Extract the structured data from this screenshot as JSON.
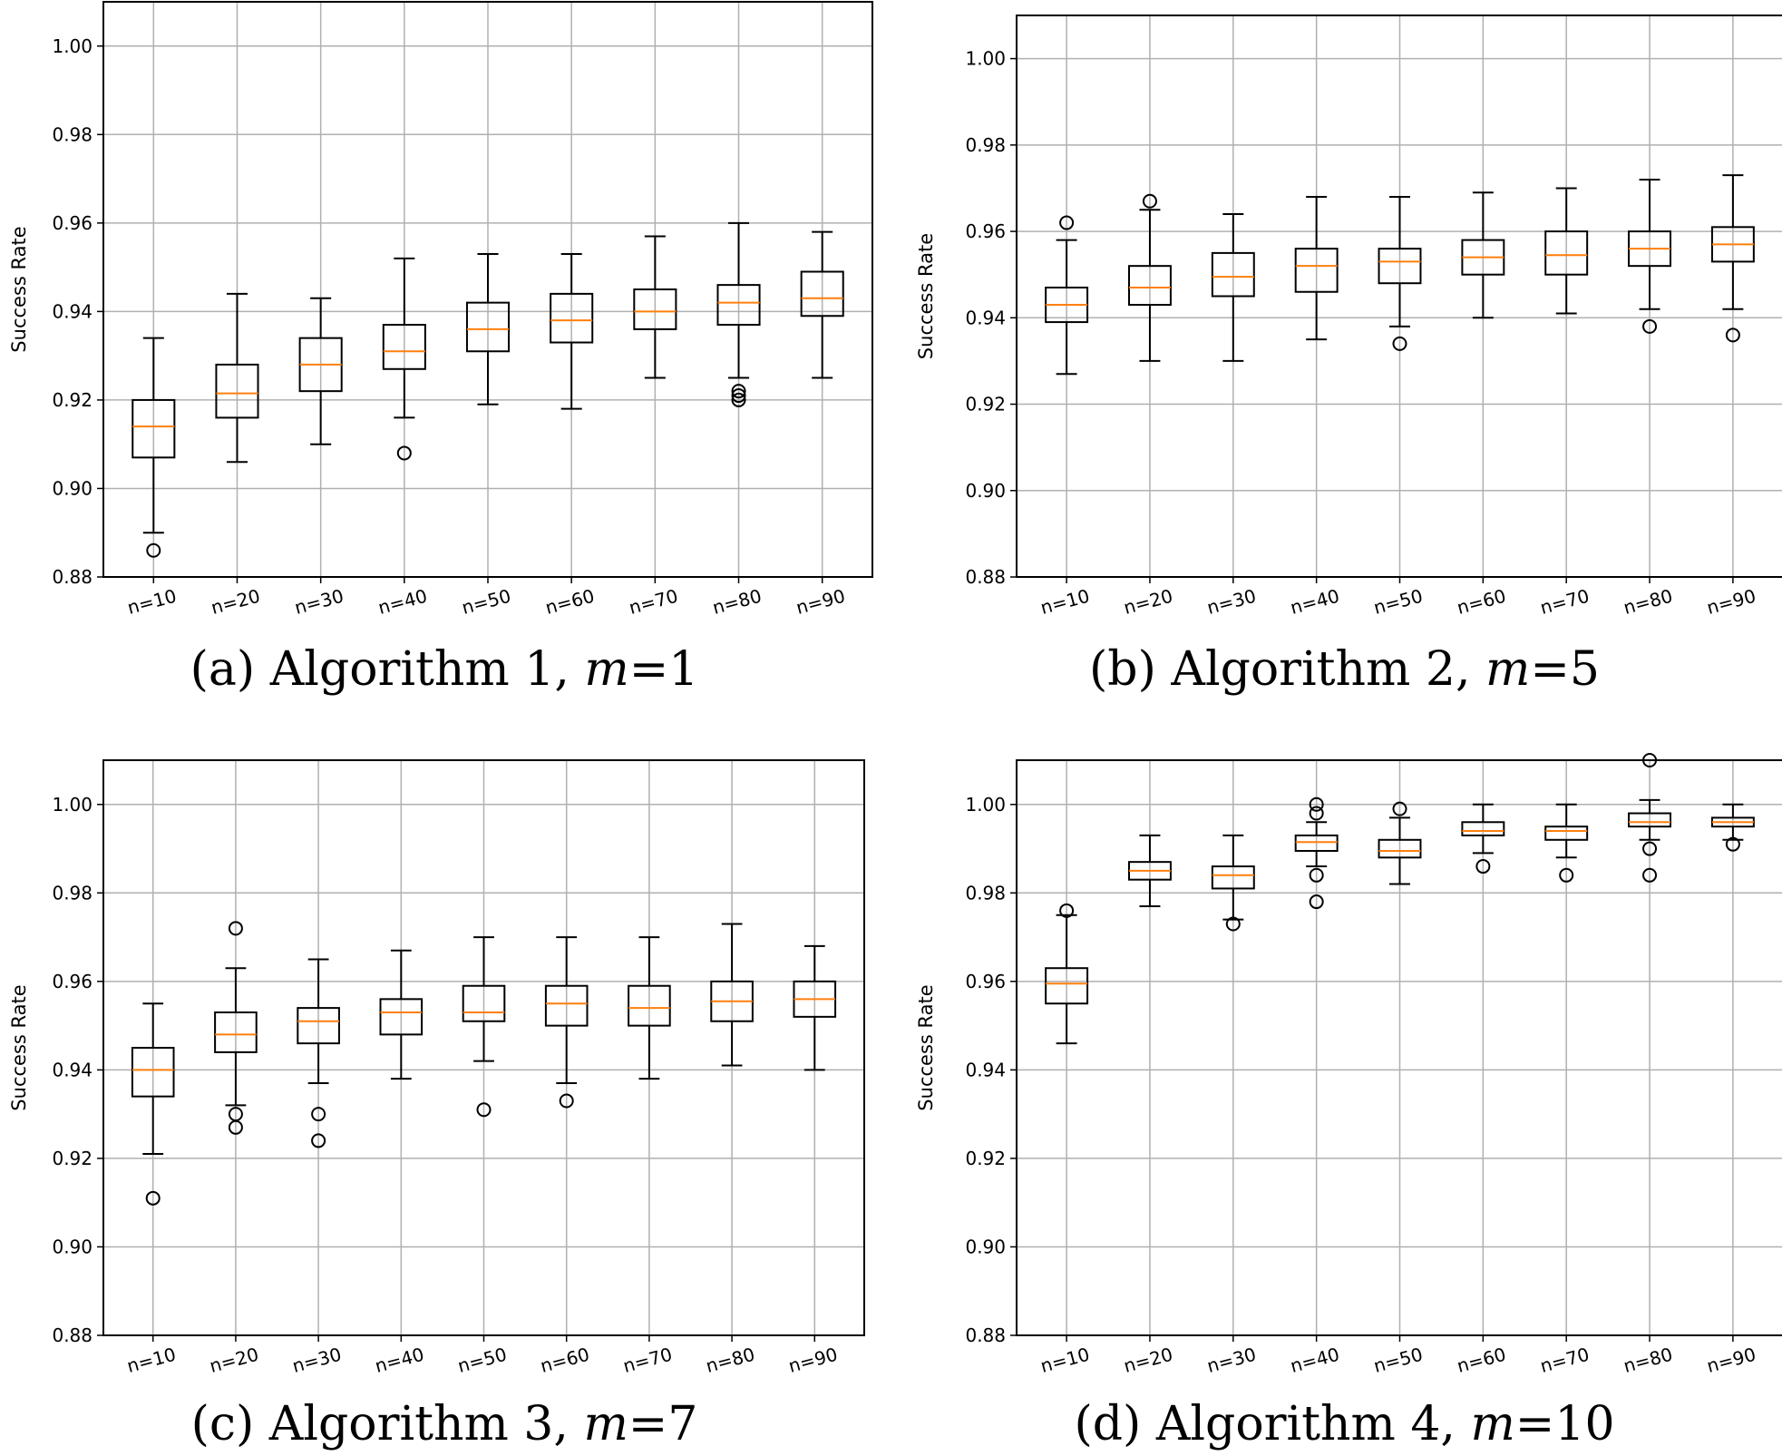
{
  "figure": {
    "panels": [
      {
        "caption": {
          "prefix": "(a) Algorithm 1, ",
          "var": "m",
          "suffix": "=1"
        },
        "chart_data": {
          "type": "box",
          "title": "",
          "xlabel": "",
          "ylabel": "Success Rate",
          "ylim": [
            0.88,
            1.01
          ],
          "yticks": [
            "0.88",
            "0.90",
            "0.92",
            "0.94",
            "0.96",
            "0.98",
            "1.00"
          ],
          "grid": true,
          "categories": [
            "n=10",
            "n=20",
            "n=30",
            "n=40",
            "n=50",
            "n=60",
            "n=70",
            "n=80",
            "n=90"
          ],
          "boxes": [
            {
              "whisker_low": 0.89,
              "q1": 0.907,
              "median": 0.914,
              "q3": 0.92,
              "whisker_high": 0.934,
              "outliers": [
                0.886
              ]
            },
            {
              "whisker_low": 0.906,
              "q1": 0.916,
              "median": 0.9215,
              "q3": 0.928,
              "whisker_high": 0.944,
              "outliers": []
            },
            {
              "whisker_low": 0.91,
              "q1": 0.922,
              "median": 0.928,
              "q3": 0.934,
              "whisker_high": 0.943,
              "outliers": []
            },
            {
              "whisker_low": 0.916,
              "q1": 0.927,
              "median": 0.931,
              "q3": 0.937,
              "whisker_high": 0.952,
              "outliers": [
                0.908
              ]
            },
            {
              "whisker_low": 0.919,
              "q1": 0.931,
              "median": 0.936,
              "q3": 0.942,
              "whisker_high": 0.953,
              "outliers": []
            },
            {
              "whisker_low": 0.918,
              "q1": 0.933,
              "median": 0.938,
              "q3": 0.944,
              "whisker_high": 0.953,
              "outliers": []
            },
            {
              "whisker_low": 0.925,
              "q1": 0.936,
              "median": 0.94,
              "q3": 0.945,
              "whisker_high": 0.957,
              "outliers": []
            },
            {
              "whisker_low": 0.925,
              "q1": 0.937,
              "median": 0.942,
              "q3": 0.946,
              "whisker_high": 0.96,
              "outliers": [
                0.922,
                0.921,
                0.92
              ]
            },
            {
              "whisker_low": 0.925,
              "q1": 0.939,
              "median": 0.943,
              "q3": 0.949,
              "whisker_high": 0.958,
              "outliers": []
            }
          ]
        }
      },
      {
        "caption": {
          "prefix": "(b) Algorithm 2, ",
          "var": "m",
          "suffix": "=5"
        },
        "chart_data": {
          "type": "box",
          "title": "",
          "xlabel": "",
          "ylabel": "Success Rate",
          "ylim": [
            0.88,
            1.01
          ],
          "yticks": [
            "0.88",
            "0.90",
            "0.92",
            "0.94",
            "0.96",
            "0.98",
            "1.00"
          ],
          "grid": true,
          "categories": [
            "n=10",
            "n=20",
            "n=30",
            "n=40",
            "n=50",
            "n=60",
            "n=70",
            "n=80",
            "n=90"
          ],
          "boxes": [
            {
              "whisker_low": 0.927,
              "q1": 0.939,
              "median": 0.943,
              "q3": 0.947,
              "whisker_high": 0.958,
              "outliers": [
                0.962
              ]
            },
            {
              "whisker_low": 0.93,
              "q1": 0.943,
              "median": 0.947,
              "q3": 0.952,
              "whisker_high": 0.965,
              "outliers": [
                0.967
              ]
            },
            {
              "whisker_low": 0.93,
              "q1": 0.945,
              "median": 0.9495,
              "q3": 0.955,
              "whisker_high": 0.964,
              "outliers": []
            },
            {
              "whisker_low": 0.935,
              "q1": 0.946,
              "median": 0.952,
              "q3": 0.956,
              "whisker_high": 0.968,
              "outliers": []
            },
            {
              "whisker_low": 0.938,
              "q1": 0.948,
              "median": 0.953,
              "q3": 0.956,
              "whisker_high": 0.968,
              "outliers": [
                0.934
              ]
            },
            {
              "whisker_low": 0.94,
              "q1": 0.95,
              "median": 0.954,
              "q3": 0.958,
              "whisker_high": 0.969,
              "outliers": []
            },
            {
              "whisker_low": 0.941,
              "q1": 0.95,
              "median": 0.9545,
              "q3": 0.96,
              "whisker_high": 0.97,
              "outliers": []
            },
            {
              "whisker_low": 0.942,
              "q1": 0.952,
              "median": 0.956,
              "q3": 0.96,
              "whisker_high": 0.972,
              "outliers": [
                0.938
              ]
            },
            {
              "whisker_low": 0.942,
              "q1": 0.953,
              "median": 0.957,
              "q3": 0.961,
              "whisker_high": 0.973,
              "outliers": [
                0.936
              ]
            }
          ]
        }
      },
      {
        "caption": {
          "prefix": "(c) Algorithm 3, ",
          "var": "m",
          "suffix": "=7"
        },
        "chart_data": {
          "type": "box",
          "title": "",
          "xlabel": "",
          "ylabel": "Success Rate",
          "ylim": [
            0.88,
            1.01
          ],
          "yticks": [
            "0.88",
            "0.90",
            "0.92",
            "0.94",
            "0.96",
            "0.98",
            "1.00"
          ],
          "grid": true,
          "categories": [
            "n=10",
            "n=20",
            "n=30",
            "n=40",
            "n=50",
            "n=60",
            "n=70",
            "n=80",
            "n=90"
          ],
          "boxes": [
            {
              "whisker_low": 0.921,
              "q1": 0.934,
              "median": 0.94,
              "q3": 0.945,
              "whisker_high": 0.955,
              "outliers": [
                0.911
              ]
            },
            {
              "whisker_low": 0.932,
              "q1": 0.944,
              "median": 0.948,
              "q3": 0.953,
              "whisker_high": 0.963,
              "outliers": [
                0.972,
                0.93,
                0.927
              ]
            },
            {
              "whisker_low": 0.937,
              "q1": 0.946,
              "median": 0.951,
              "q3": 0.954,
              "whisker_high": 0.965,
              "outliers": [
                0.93,
                0.924
              ]
            },
            {
              "whisker_low": 0.938,
              "q1": 0.948,
              "median": 0.953,
              "q3": 0.956,
              "whisker_high": 0.967,
              "outliers": []
            },
            {
              "whisker_low": 0.942,
              "q1": 0.951,
              "median": 0.953,
              "q3": 0.959,
              "whisker_high": 0.97,
              "outliers": [
                0.931
              ]
            },
            {
              "whisker_low": 0.937,
              "q1": 0.95,
              "median": 0.955,
              "q3": 0.959,
              "whisker_high": 0.97,
              "outliers": [
                0.933
              ]
            },
            {
              "whisker_low": 0.938,
              "q1": 0.95,
              "median": 0.954,
              "q3": 0.959,
              "whisker_high": 0.97,
              "outliers": []
            },
            {
              "whisker_low": 0.941,
              "q1": 0.951,
              "median": 0.9555,
              "q3": 0.96,
              "whisker_high": 0.973,
              "outliers": []
            },
            {
              "whisker_low": 0.94,
              "q1": 0.952,
              "median": 0.956,
              "q3": 0.96,
              "whisker_high": 0.968,
              "outliers": []
            }
          ]
        }
      },
      {
        "caption": {
          "prefix": "(d) Algorithm 4, ",
          "var": "m",
          "suffix": "=10"
        },
        "chart_data": {
          "type": "box",
          "title": "",
          "xlabel": "",
          "ylabel": "Success Rate",
          "ylim": [
            0.88,
            1.01
          ],
          "yticks": [
            "0.88",
            "0.90",
            "0.92",
            "0.94",
            "0.96",
            "0.98",
            "1.00"
          ],
          "grid": true,
          "categories": [
            "n=10",
            "n=20",
            "n=30",
            "n=40",
            "n=50",
            "n=60",
            "n=70",
            "n=80",
            "n=90"
          ],
          "boxes": [
            {
              "whisker_low": 0.946,
              "q1": 0.955,
              "median": 0.9595,
              "q3": 0.963,
              "whisker_high": 0.975,
              "outliers": [
                0.976
              ]
            },
            {
              "whisker_low": 0.977,
              "q1": 0.983,
              "median": 0.985,
              "q3": 0.987,
              "whisker_high": 0.993,
              "outliers": []
            },
            {
              "whisker_low": 0.974,
              "q1": 0.981,
              "median": 0.984,
              "q3": 0.986,
              "whisker_high": 0.993,
              "outliers": [
                0.973
              ]
            },
            {
              "whisker_low": 0.986,
              "q1": 0.9895,
              "median": 0.9915,
              "q3": 0.993,
              "whisker_high": 0.996,
              "outliers": [
                1.0,
                0.998,
                0.984,
                0.978
              ]
            },
            {
              "whisker_low": 0.982,
              "q1": 0.988,
              "median": 0.9895,
              "q3": 0.992,
              "whisker_high": 0.997,
              "outliers": [
                0.999
              ]
            },
            {
              "whisker_low": 0.989,
              "q1": 0.993,
              "median": 0.994,
              "q3": 0.996,
              "whisker_high": 1.0,
              "outliers": [
                0.986
              ]
            },
            {
              "whisker_low": 0.988,
              "q1": 0.992,
              "median": 0.994,
              "q3": 0.995,
              "whisker_high": 1.0,
              "outliers": [
                0.984
              ]
            },
            {
              "whisker_low": 0.992,
              "q1": 0.995,
              "median": 0.996,
              "q3": 0.998,
              "whisker_high": 1.001,
              "outliers": [
                1.01,
                0.99,
                0.984
              ]
            },
            {
              "whisker_low": 0.992,
              "q1": 0.995,
              "median": 0.996,
              "q3": 0.997,
              "whisker_high": 1.0,
              "outliers": [
                0.991
              ]
            }
          ]
        }
      }
    ]
  }
}
